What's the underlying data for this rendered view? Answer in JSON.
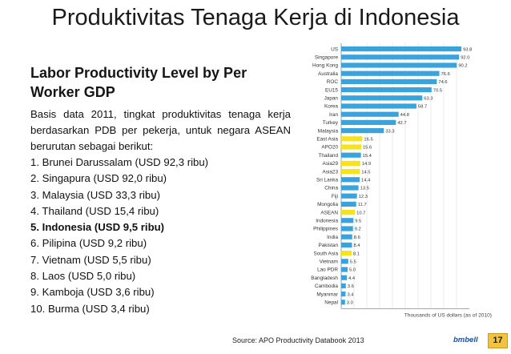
{
  "slide": {
    "title": "Produktivitas Tenaga Kerja di Indonesia",
    "subtitle": "Labor Productivity Level by Per Worker GDP",
    "intro": "Basis data 2011, tingkat produktivitas tenaga kerja berdasarkan PDB per pekerja, untuk negara ASEAN berurutan sebagai berikut:",
    "ranking": [
      "1.  Brunei Darussalam (USD 92,3 ribu)",
      "2.  Singapura (USD 92,0 ribu)",
      "3.  Malaysia (USD 33,3 ribu)",
      "4.  Thailand (USD 15,4 ribu)",
      "5.  Indonesia (USD 9,5 ribu)",
      "6.  Pilipina (USD 9,2 ribu)",
      "7.  Vietnam (USD 5,5 ribu)",
      "8.  Laos (USD 5,0 ribu)",
      "9.  Kamboja (USD 3,6 ribu)",
      "10. Burma (USD 3,4 ribu)"
    ],
    "source": "Source: APO Productivity Databook 2013",
    "brand": "bmbell",
    "page_number": "17"
  },
  "chart_data": {
    "type": "bar",
    "orientation": "horizontal",
    "title": "",
    "xlabel": "Thousands of US dollars (as of 2010)",
    "ylabel": "",
    "xlim": [
      0,
      100
    ],
    "grid": true,
    "colors": {
      "default": "#3aa3dc",
      "aggregate": "#f6e21f"
    },
    "categories": [
      "US",
      "Singapore",
      "Hong Kong",
      "Australia",
      "ROC",
      "EU15",
      "Japan",
      "Korea",
      "Iran",
      "Turkey",
      "Malaysia",
      "East Asia",
      "APO20",
      "Thailand",
      "Asia29",
      "Asia23",
      "Sri Lanka",
      "China",
      "Fiji",
      "Mongolia",
      "ASEAN",
      "Indonesia",
      "Philippines",
      "India",
      "Pakistan",
      "South Asia",
      "Vietnam",
      "Lao PDR",
      "Bangladesh",
      "Cambodia",
      "Myanmar",
      "Nepal"
    ],
    "values": [
      93.8,
      92.0,
      90.2,
      76.6,
      74.6,
      70.5,
      63.3,
      58.7,
      44.8,
      42.7,
      33.3,
      16.5,
      15.6,
      15.4,
      14.9,
      14.5,
      14.4,
      13.5,
      12.3,
      11.7,
      10.7,
      9.5,
      9.2,
      8.6,
      8.4,
      8.1,
      5.5,
      5.0,
      4.4,
      3.6,
      3.4,
      3.0
    ],
    "value_labels": [
      "93.8",
      "92.0",
      "90.2",
      "76.6",
      "74.6",
      "70.5",
      "63.3",
      "58.7",
      "44.8",
      "42.7",
      "33.3",
      "16.5",
      "15.6",
      "15.4",
      "14.9",
      "14.5",
      "14.4",
      "13.5",
      "12.3",
      "11.7",
      "10.7",
      "9.5",
      "9.2",
      "8.6",
      "8.4",
      "8.1",
      "5.5",
      "5.0",
      "4.4",
      "3.6",
      "3.4",
      "3.0"
    ],
    "highlight": [
      false,
      false,
      false,
      false,
      false,
      false,
      false,
      false,
      false,
      false,
      false,
      true,
      true,
      false,
      true,
      true,
      false,
      false,
      false,
      false,
      true,
      false,
      false,
      false,
      false,
      true,
      false,
      false,
      false,
      false,
      false,
      false
    ]
  }
}
